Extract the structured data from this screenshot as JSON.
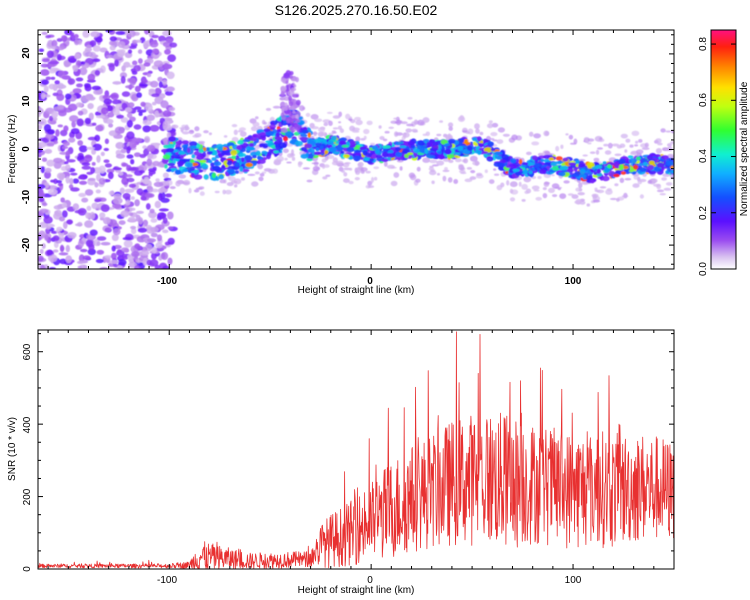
{
  "title": "S126.2025.270.16.50.E02",
  "chart_data": [
    {
      "type": "heatmap",
      "xlabel": "Height of straight line (km)",
      "ylabel": "Frequency (Hz)",
      "xlim": [
        -165,
        150
      ],
      "ylim": [
        -25,
        25
      ],
      "x_ticks": [
        "-100",
        "0",
        "100"
      ],
      "y_ticks": [
        "-20",
        "-10",
        "0",
        "10",
        "20"
      ],
      "colorbar": {
        "label": "Normalized spectral amplitude",
        "range": [
          0,
          0.85
        ],
        "ticks": [
          "0.0",
          "0.2",
          "0.4",
          "0.6",
          "0.8"
        ]
      },
      "ridge": {
        "x": [
          -100,
          -80,
          -60,
          -45,
          -38,
          -30,
          -20,
          0,
          20,
          40,
          55,
          70,
          90,
          110,
          130,
          150
        ],
        "y": [
          -1,
          -3,
          -1,
          3,
          5,
          0,
          1,
          -1,
          0,
          0,
          1,
          -4,
          -3,
          -5,
          -3,
          -3
        ]
      }
    },
    {
      "type": "line",
      "xlabel": "Height of straight line (km)",
      "ylabel": "SNR (10 * v/v)",
      "xlim": [
        -165,
        150
      ],
      "ylim": [
        0,
        660
      ],
      "x_ticks": [
        "-100",
        "0",
        "100"
      ],
      "y_ticks": [
        "0",
        "200",
        "400",
        "600"
      ],
      "color": "#e83030",
      "envelope": {
        "x": [
          -165,
          -100,
          -90,
          -85,
          -70,
          -60,
          -30,
          -25,
          -20,
          -10,
          0,
          10,
          20,
          30,
          40,
          50,
          60,
          70,
          80,
          90,
          100,
          110,
          120,
          130,
          140,
          150
        ],
        "base": [
          8,
          8,
          10,
          30,
          25,
          20,
          25,
          60,
          70,
          90,
          120,
          150,
          180,
          200,
          220,
          230,
          230,
          220,
          220,
          210,
          200,
          210,
          200,
          210,
          210,
          200
        ],
        "amp": [
          10,
          12,
          20,
          90,
          60,
          45,
          45,
          120,
          150,
          180,
          220,
          280,
          300,
          320,
          350,
          370,
          380,
          380,
          340,
          330,
          330,
          330,
          320,
          310,
          300,
          280
        ]
      }
    }
  ]
}
